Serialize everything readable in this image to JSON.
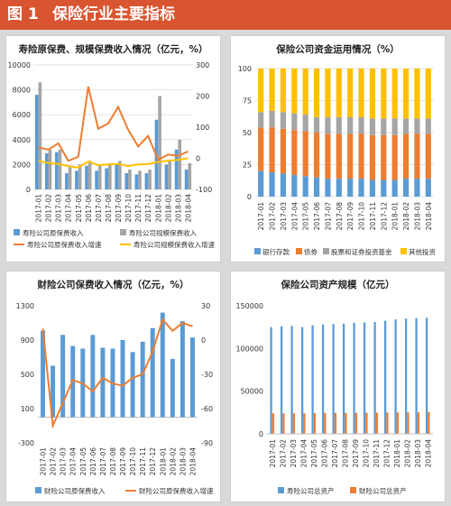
{
  "header": {
    "label": "图 1",
    "title": "保险行业主要指标"
  },
  "chart_data": [
    {
      "type": "bar",
      "title": "寿险原保费、规模保费收入情况（亿元，%）",
      "categories": [
        "2017-01",
        "2017-02",
        "2017-03",
        "2017-04",
        "2017-05",
        "2017-06",
        "2017-07",
        "2017-08",
        "2017-09",
        "2017-10",
        "2017-11",
        "2017-12",
        "2018-01",
        "2018-02",
        "2018-03",
        "2018-04"
      ],
      "ylim": [
        0,
        10000
      ],
      "yticks": [
        "0",
        "2000",
        "4000",
        "6000",
        "8000",
        "10000"
      ],
      "y2lim": [
        -100,
        300
      ],
      "y2ticks": [
        "-100",
        "0",
        "100",
        "200",
        "300"
      ],
      "series": [
        {
          "name": "寿险公司原保费收入",
          "kind": "bar",
          "color": "#5b9bd5",
          "values": [
            7600,
            2900,
            3000,
            1300,
            1500,
            1900,
            1500,
            1700,
            2100,
            1300,
            1200,
            1300,
            5600,
            2000,
            3200,
            1600
          ]
        },
        {
          "name": "寿险公司规模保费收入",
          "kind": "bar",
          "color": "#a5a5a5",
          "values": [
            8600,
            3200,
            3200,
            1800,
            2000,
            2300,
            1900,
            2100,
            2300,
            1600,
            1500,
            1600,
            7500,
            2300,
            4000,
            2100
          ]
        },
        {
          "name": "寿险公司原保费收入增速",
          "kind": "line",
          "axis": "right",
          "color": "#ed7d31",
          "values": [
            35,
            28,
            48,
            -8,
            5,
            230,
            95,
            112,
            165,
            92,
            38,
            72,
            -5,
            12,
            8,
            22
          ]
        },
        {
          "name": "寿险公司规模保费收入增速",
          "kind": "line",
          "axis": "right",
          "color": "#ffc000",
          "values": [
            -8,
            -15,
            -18,
            -25,
            -30,
            -10,
            -22,
            -20,
            -18,
            -25,
            -20,
            -18,
            -12,
            -8,
            -5,
            0
          ]
        }
      ]
    },
    {
      "type": "bar",
      "title": "保险公司资金运用情况（%）",
      "stacked": true,
      "categories": [
        "2017-01",
        "2017-02",
        "2017-03",
        "2017-04",
        "2017-05",
        "2017-06",
        "2017-07",
        "2017-08",
        "2017-09",
        "2017-10",
        "2017-11",
        "2017-12",
        "2018-01",
        "2018-02",
        "2018-03",
        "2018-04"
      ],
      "ylim": [
        0,
        100
      ],
      "yticks": [
        "0",
        "25",
        "50",
        "75",
        "100"
      ],
      "series": [
        {
          "name": "银行存款",
          "color": "#5b9bd5",
          "values": [
            20,
            19,
            18,
            17,
            16,
            15,
            14,
            14,
            14,
            14,
            13,
            13,
            13,
            14,
            14,
            14
          ]
        },
        {
          "name": "债券",
          "color": "#ed7d31",
          "values": [
            34,
            35,
            35,
            35,
            35,
            35,
            35,
            35,
            35,
            35,
            35,
            35,
            35,
            35,
            35,
            35
          ]
        },
        {
          "name": "股票和证券投资基金",
          "color": "#a5a5a5",
          "values": [
            12,
            13,
            13,
            13,
            13,
            12,
            13,
            13,
            13,
            13,
            13,
            13,
            13,
            12,
            12,
            12
          ]
        },
        {
          "name": "其他投资",
          "color": "#ffc000",
          "values": [
            34,
            33,
            34,
            35,
            36,
            38,
            38,
            38,
            38,
            38,
            39,
            39,
            39,
            39,
            39,
            39
          ]
        }
      ]
    },
    {
      "type": "bar",
      "title": "财险公司保费收入情况（亿元，%）",
      "categories": [
        "2017-01",
        "2017-02",
        "2017-03",
        "2017-04",
        "2017-05",
        "2017-06",
        "2017-07",
        "2017-08",
        "2017-09",
        "2017-10",
        "2017-11",
        "2017-12",
        "2018-01",
        "2018-02",
        "2018-03",
        "2018-04"
      ],
      "ylim": [
        -300,
        1300
      ],
      "yticks": [
        "-300",
        "100",
        "500",
        "900",
        "1300"
      ],
      "y2lim": [
        -90,
        30
      ],
      "y2ticks": [
        "-90",
        "-60",
        "-30",
        "0",
        "30"
      ],
      "series": [
        {
          "name": "财险公司原保费收入",
          "kind": "bar",
          "color": "#5b9bd5",
          "values": [
            1010,
            600,
            960,
            830,
            800,
            960,
            810,
            800,
            900,
            760,
            880,
            1040,
            1220,
            680,
            1120,
            930
          ]
        },
        {
          "name": "财险公司原保费收入增速",
          "kind": "line",
          "axis": "right",
          "color": "#ed7d31",
          "values": [
            10,
            -75,
            -55,
            -35,
            -38,
            -45,
            -33,
            -38,
            -40,
            -33,
            -30,
            -10,
            18,
            8,
            15,
            12
          ]
        }
      ]
    },
    {
      "type": "bar",
      "title": "保险公司资产规模（亿元）",
      "categories": [
        "2017-01",
        "2017-02",
        "2017-03",
        "2017-04",
        "2017-05",
        "2017-06",
        "2017-07",
        "2017-08",
        "2017-09",
        "2017-10",
        "2017-11",
        "2017-12",
        "2018-01",
        "2018-02",
        "2018-03",
        "2018-04"
      ],
      "ylim": [
        0,
        150000
      ],
      "yticks": [
        "0",
        "50000",
        "100000",
        "150000"
      ],
      "series": [
        {
          "name": "寿险公司总资产",
          "color": "#5b9bd5",
          "values": [
            125000,
            126000,
            126500,
            125000,
            127000,
            128000,
            128500,
            129000,
            130000,
            130500,
            131000,
            132500,
            134000,
            135000,
            135500,
            136000
          ]
        },
        {
          "name": "财险公司总资产",
          "color": "#ed7d31",
          "values": [
            24000,
            24000,
            24200,
            24200,
            24300,
            24500,
            24500,
            24600,
            24700,
            24800,
            24800,
            25000,
            25000,
            25100,
            25200,
            25300
          ]
        }
      ]
    }
  ]
}
